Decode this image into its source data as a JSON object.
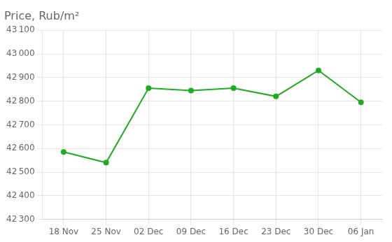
{
  "chart_data": {
    "type": "line",
    "title": "Price, Rub/m²",
    "categories": [
      "18 Nov",
      "25 Nov",
      "02 Dec",
      "09 Dec",
      "16 Dec",
      "23 Dec",
      "30 Dec",
      "06 Jan"
    ],
    "values": [
      42585,
      42540,
      42855,
      42845,
      42855,
      42820,
      42930,
      42795
    ],
    "color": "#22aa22",
    "marker": "circle",
    "ylim": [
      42300,
      43100
    ],
    "yticks": [
      {
        "value": 42300,
        "label": "42 300"
      },
      {
        "value": 42400,
        "label": "42 400"
      },
      {
        "value": 42500,
        "label": "42 500"
      },
      {
        "value": 42600,
        "label": "42 600"
      },
      {
        "value": 42700,
        "label": "42 700"
      },
      {
        "value": 42800,
        "label": "42 800"
      },
      {
        "value": 42900,
        "label": "42 900"
      },
      {
        "value": 43000,
        "label": "43 000"
      },
      {
        "value": 43100,
        "label": "43 100"
      }
    ],
    "grid": true
  }
}
